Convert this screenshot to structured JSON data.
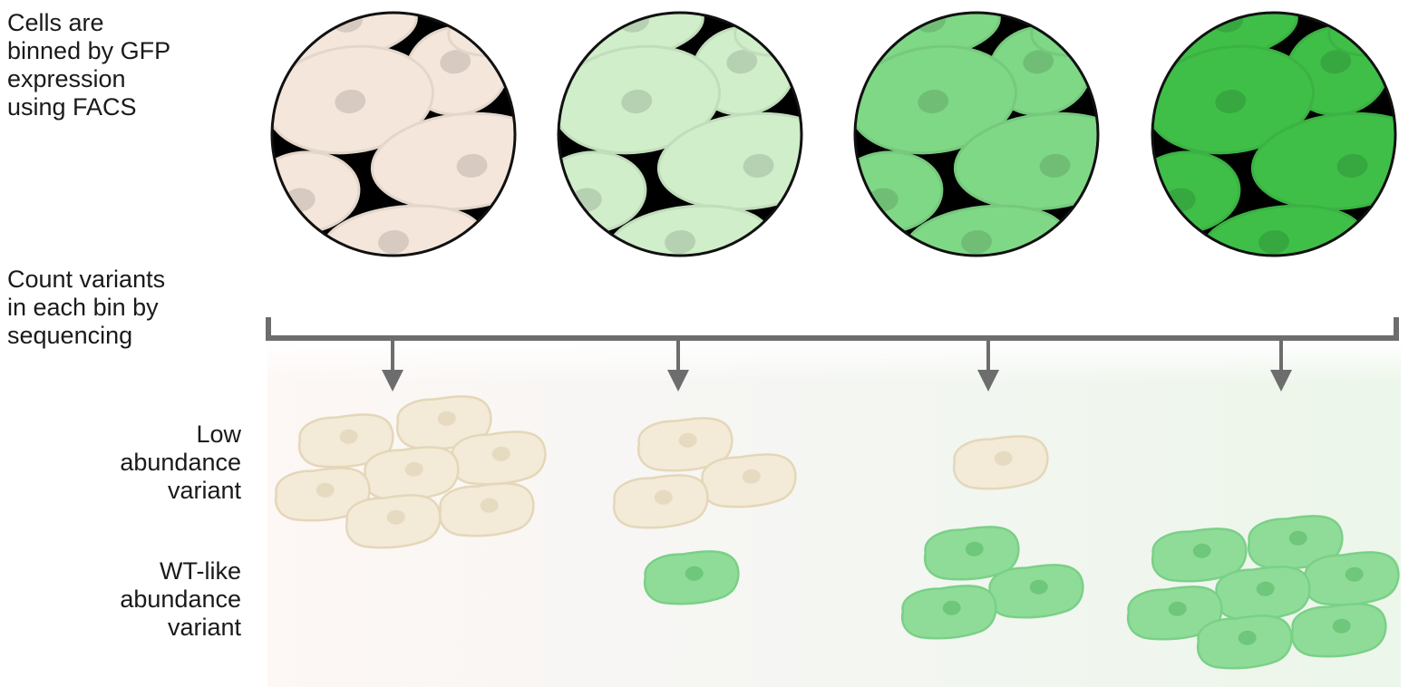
{
  "labels": {
    "step1": [
      "Cells are",
      "binned by GFP",
      "expression",
      "using FACS"
    ],
    "step2": [
      "Count variants",
      "in each bin by",
      "sequencing"
    ],
    "low": [
      "Low",
      "abundance",
      "variant"
    ],
    "wt": [
      "WT-like",
      "abundance",
      "variant"
    ]
  },
  "bins": [
    {
      "green_level": 0.0,
      "low_count": 7,
      "wt_count": 0
    },
    {
      "green_level": 0.33,
      "low_count": 3,
      "wt_count": 1
    },
    {
      "green_level": 0.66,
      "low_count": 1,
      "wt_count": 3
    },
    {
      "green_level": 1.0,
      "low_count": 0,
      "wt_count": 7
    }
  ],
  "colors": {
    "cell_pale": "#f1e8d4",
    "cell_pale_edge": "#e2d6b8",
    "cell_green": "#86d990",
    "cell_green_edge": "#74cc80",
    "bracket": "#6d6d6d",
    "background_black": "#000000"
  }
}
